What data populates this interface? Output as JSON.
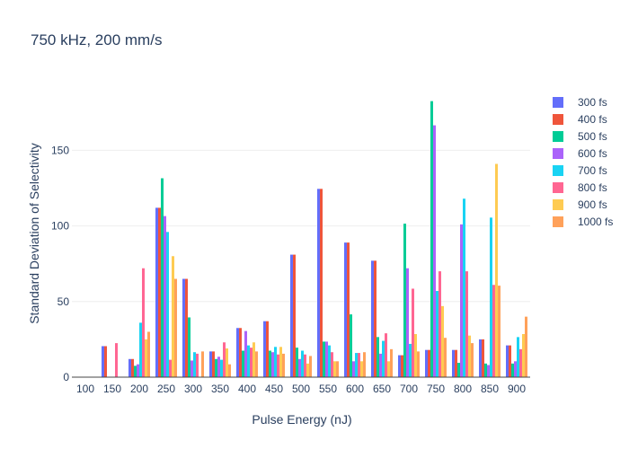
{
  "chart_data": {
    "type": "bar",
    "title": "750 kHz, 200 mm/s",
    "xlabel": "Pulse Energy (nJ)",
    "ylabel": "Standard Deviation of Selectivity",
    "categories": [
      "100",
      "150",
      "200",
      "250",
      "300",
      "350",
      "400",
      "450",
      "500",
      "550",
      "600",
      "650",
      "700",
      "750",
      "800",
      "850",
      "900"
    ],
    "ylim": [
      0,
      190
    ],
    "yticks": [
      0,
      50,
      100,
      150
    ],
    "grid": true,
    "legend_position": "right",
    "series": [
      {
        "name": "300 fs",
        "color": "#636efa",
        "values": [
          0,
          20.5,
          12,
          112,
          65,
          17,
          32.5,
          37,
          81,
          124.5,
          89,
          77,
          14.5,
          18,
          18,
          25,
          21
        ]
      },
      {
        "name": "400 fs",
        "color": "#ef553b",
        "values": [
          0,
          20.5,
          12,
          112,
          65,
          17,
          32.5,
          37,
          81,
          124.5,
          89,
          77,
          14.5,
          18,
          18,
          25,
          21
        ]
      },
      {
        "name": "500 fs",
        "color": "#00cc96",
        "values": [
          0,
          0,
          7.5,
          131.5,
          39.5,
          12,
          17.5,
          17.5,
          19.5,
          23.5,
          41.5,
          26.5,
          101.5,
          182.5,
          9.5,
          9,
          9
        ]
      },
      {
        "name": "600 fs",
        "color": "#ab63fa",
        "values": [
          0,
          0,
          8.5,
          106.5,
          11,
          13.5,
          30.5,
          16.5,
          12,
          23.5,
          10.5,
          15.5,
          72,
          166.5,
          101,
          8,
          10.5
        ]
      },
      {
        "name": "700 fs",
        "color": "#19d3f3",
        "values": [
          0,
          0,
          36,
          96,
          16.5,
          11.5,
          21,
          20,
          17.5,
          21,
          16,
          24,
          22,
          57,
          118,
          105.5,
          26.5
        ]
      },
      {
        "name": "800 fs",
        "color": "#ff6692",
        "values": [
          0,
          22.5,
          72,
          11.5,
          15.5,
          23,
          19.5,
          15,
          15,
          16.5,
          16,
          29,
          58.5,
          70,
          70,
          61,
          18.5
        ]
      },
      {
        "name": "900 fs",
        "color": "#fecb52",
        "values": [
          0,
          0,
          25,
          80,
          0,
          19,
          23,
          20,
          9,
          10.5,
          10.5,
          10.5,
          28.5,
          47,
          27.5,
          141,
          28.5
        ]
      },
      {
        "name": "1000 fs",
        "color": "#ffa15a",
        "values": [
          0,
          0,
          30,
          65,
          17,
          8.5,
          17,
          15.5,
          14,
          10.5,
          16.5,
          18.5,
          17,
          26,
          22.5,
          60.5,
          40
        ]
      }
    ]
  }
}
